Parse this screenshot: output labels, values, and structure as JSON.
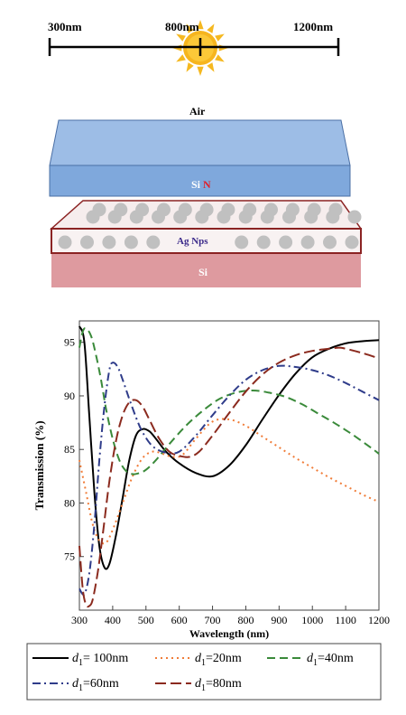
{
  "spectrum_bar": {
    "labels": [
      "300nm",
      "800nm",
      "1200nm"
    ],
    "sun_icon": "sun-icon"
  },
  "structure": {
    "top_label": "Air",
    "layer1_label": "Si",
    "layer1_label_suffix": "N",
    "layer2_label": "Ag Nps",
    "layer3_label": "Si",
    "colors": {
      "sin_layer": "#7fa8dc",
      "ag_layer_border": "#8b2323",
      "si_layer": "#de9a9f",
      "nps": "#c0c0c0"
    }
  },
  "chart_data": {
    "type": "line",
    "xlabel": "Wavelength (nm)",
    "ylabel": "Transmission (%)",
    "xlim": [
      300,
      1200
    ],
    "ylim": [
      70,
      97
    ],
    "x_ticks": [
      300,
      400,
      500,
      600,
      700,
      800,
      900,
      1000,
      1100,
      1200
    ],
    "y_ticks": [
      75,
      80,
      85,
      90,
      95
    ],
    "series": [
      {
        "name": "d1= 100nm",
        "legend_prefix": "d",
        "legend_sub": "1",
        "legend_rest": "= 100nm",
        "color": "#000000",
        "dash": "",
        "x": [
          300,
          315,
          330,
          345,
          360,
          375,
          390,
          410,
          430,
          450,
          470,
          490,
          510,
          530,
          560,
          600,
          650,
          700,
          750,
          800,
          850,
          900,
          950,
          1000,
          1050,
          1100,
          1150,
          1200
        ],
        "y": [
          96.5,
          95,
          88,
          81,
          76,
          74,
          74.3,
          77,
          80.5,
          84,
          86.3,
          86.9,
          86.7,
          86,
          84.8,
          83.7,
          82.8,
          82.5,
          83.5,
          85.4,
          87.8,
          90.1,
          92.1,
          93.6,
          94.4,
          94.9,
          95.1,
          95.2
        ]
      },
      {
        "name": "d1=20nm",
        "legend_prefix": "d",
        "legend_sub": "1",
        "legend_rest": "=20nm",
        "color": "#f07c38",
        "dash": "2,4",
        "x": [
          300,
          320,
          340,
          360,
          380,
          400,
          430,
          460,
          490,
          520,
          550,
          580,
          610,
          650,
          700,
          750,
          800,
          850,
          900,
          950,
          1000,
          1050,
          1100,
          1150,
          1200
        ],
        "y": [
          84,
          81,
          78,
          76.5,
          76.3,
          77.5,
          80,
          82.5,
          84.2,
          84.8,
          84.6,
          84.3,
          84.5,
          86,
          87.6,
          87.8,
          87.2,
          86.2,
          85.2,
          84.2,
          83.3,
          82.4,
          81.6,
          80.8,
          80.1
        ]
      },
      {
        "name": "d1=40nm",
        "legend_prefix": "d",
        "legend_sub": "1",
        "legend_rest": "=40nm",
        "color": "#3a8a3a",
        "dash": "9,5",
        "x": [
          300,
          310,
          320,
          335,
          350,
          365,
          380,
          400,
          420,
          440,
          460,
          480,
          500,
          530,
          570,
          620,
          670,
          720,
          770,
          820,
          870,
          920,
          970,
          1020,
          1070,
          1120,
          1170,
          1200
        ],
        "y": [
          94.5,
          96,
          96.3,
          95.6,
          93.8,
          91.5,
          88.8,
          86,
          84,
          83,
          82.7,
          82.8,
          83.1,
          84,
          85.5,
          87.2,
          88.6,
          89.7,
          90.3,
          90.5,
          90.3,
          89.9,
          89.2,
          88.3,
          87.4,
          86.4,
          85.3,
          84.6
        ]
      },
      {
        "name": "d1=60nm",
        "legend_prefix": "d",
        "legend_sub": "1",
        "legend_rest": "=60nm",
        "color": "#2f3c8a",
        "dash": "9,4,2,4",
        "x": [
          300,
          315,
          330,
          345,
          360,
          375,
          390,
          400,
          415,
          430,
          450,
          470,
          490,
          520,
          560,
          600,
          650,
          700,
          750,
          800,
          850,
          900,
          950,
          1000,
          1050,
          1100,
          1150,
          1200
        ],
        "y": [
          72,
          71.5,
          73.5,
          78,
          84,
          89,
          92.4,
          93.1,
          92.7,
          91.5,
          89.7,
          88,
          86.6,
          85.3,
          84.7,
          84.8,
          86.3,
          88.2,
          90,
          91.5,
          92.4,
          92.8,
          92.7,
          92.4,
          91.9,
          91.2,
          90.4,
          89.6
        ]
      },
      {
        "name": "d1=80nm",
        "legend_prefix": "d",
        "legend_sub": "1",
        "legend_rest": "=80nm",
        "color": "#8b2a1e",
        "dash": "12,5",
        "x": [
          300,
          310,
          320,
          330,
          340,
          355,
          370,
          390,
          410,
          430,
          450,
          470,
          490,
          510,
          540,
          570,
          600,
          630,
          660,
          700,
          750,
          800,
          850,
          900,
          950,
          1000,
          1050,
          1080,
          1100,
          1150,
          1200
        ],
        "y": [
          76,
          72,
          70.5,
          70.4,
          71,
          73.5,
          77,
          82,
          85.8,
          88.2,
          89.4,
          89.6,
          89,
          87.8,
          86,
          84.8,
          84.4,
          84.3,
          84.8,
          86.3,
          88.4,
          90.4,
          92,
          93.1,
          93.8,
          94.2,
          94.4,
          94.5,
          94.4,
          94,
          93.5
        ]
      }
    ]
  }
}
